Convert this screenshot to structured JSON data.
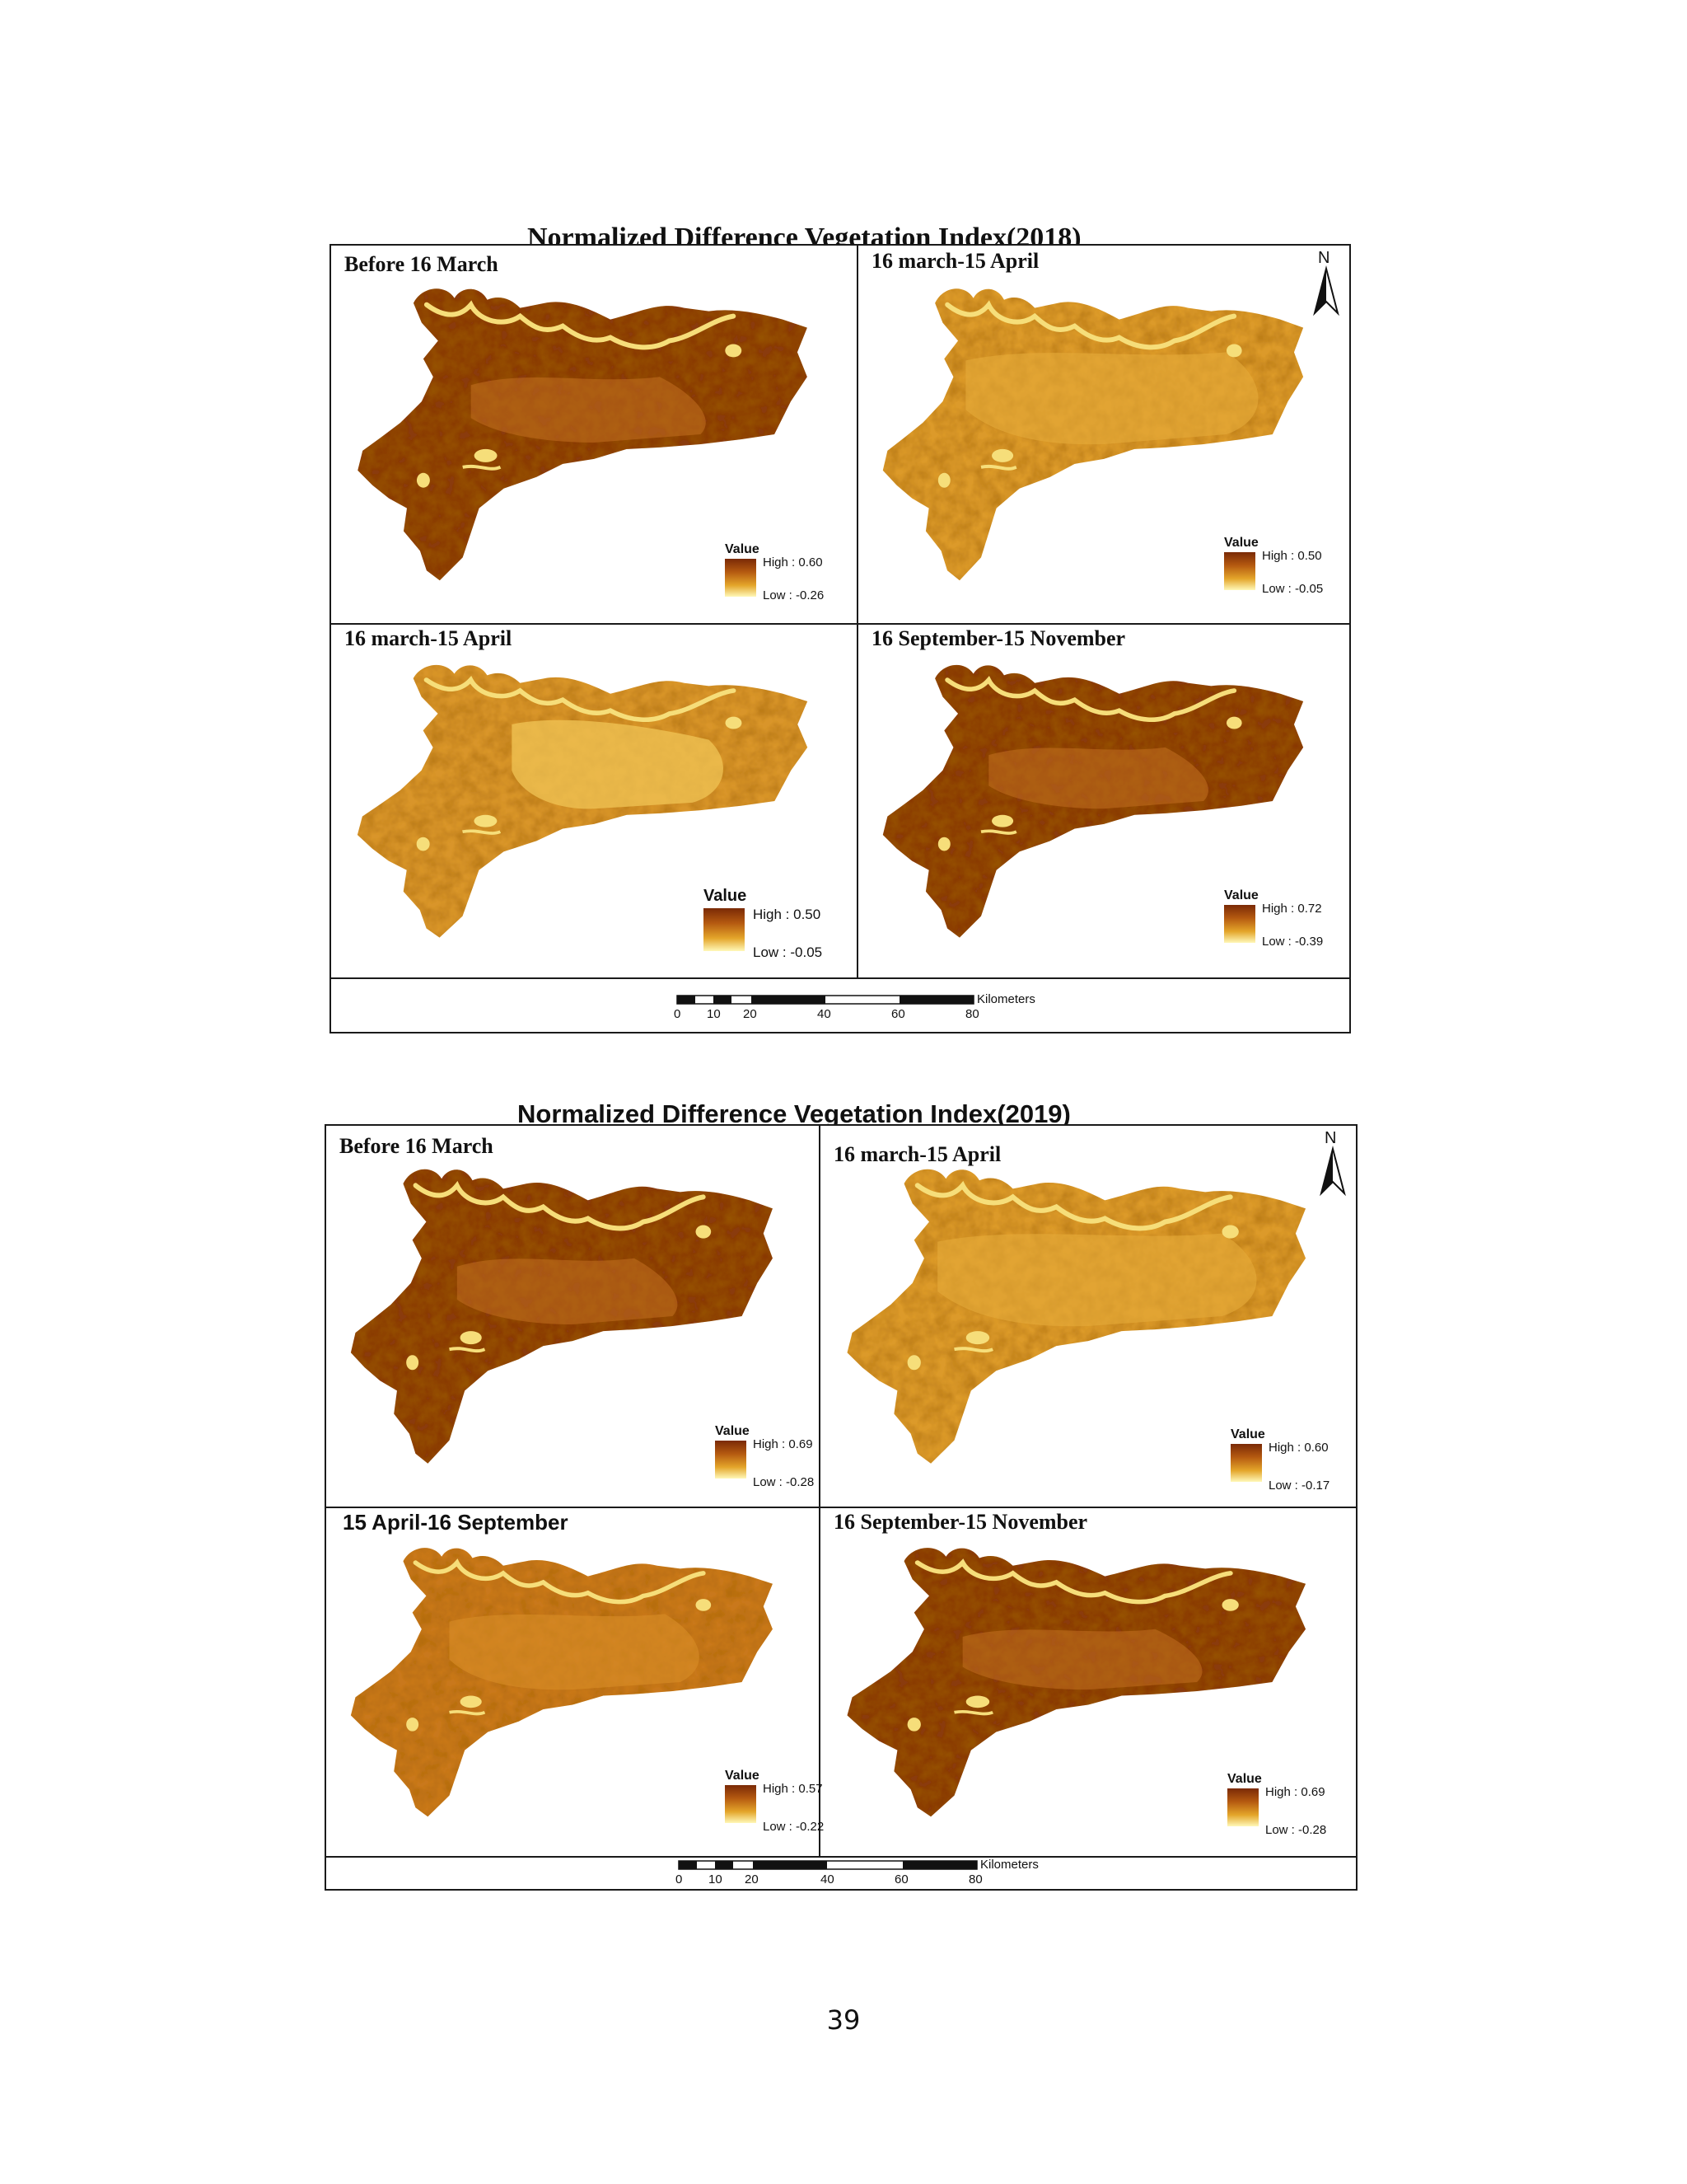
{
  "figures": [
    {
      "title": "Normalized Difference Vegetation Index(2018)",
      "panels": [
        {
          "title": "Before 16 March",
          "legend": {
            "title": "Value",
            "high": "High : 0.60",
            "low": "Low : -0.26"
          },
          "tone": "dark"
        },
        {
          "title": "16 march-15 April",
          "legend": {
            "title": "Value",
            "high": "High : 0.50",
            "low": "Low : -0.05"
          },
          "tone": "light"
        },
        {
          "title": "16 march-15 April",
          "legend": {
            "title": "Value",
            "high": "High : 0.50",
            "low": "Low : -0.05"
          },
          "tone": "lighter"
        },
        {
          "title": "16 September-15 November",
          "legend": {
            "title": "Value",
            "high": "High : 0.72",
            "low": "Low : -0.39"
          },
          "tone": "dark"
        }
      ],
      "north_label": "N",
      "scale": {
        "labels": [
          "0",
          "10",
          "20",
          "40",
          "60",
          "80"
        ],
        "units": "Kilometers"
      }
    },
    {
      "title": "Normalized Difference Vegetation Index(2019)",
      "panels": [
        {
          "title": "Before 16 March",
          "legend": {
            "title": "Value",
            "high": "High : 0.69",
            "low": "Low : -0.28"
          },
          "tone": "dark"
        },
        {
          "title": "16 march-15 April",
          "legend": {
            "title": "Value",
            "high": "High : 0.60",
            "low": "Low : -0.17"
          },
          "tone": "light"
        },
        {
          "title": "15 April-16 September",
          "legend": {
            "title": "Value",
            "high": "High : 0.57",
            "low": "Low : -0.22"
          },
          "tone": "medium"
        },
        {
          "title": "16 September-15 November",
          "legend": {
            "title": "Value",
            "high": "High : 0.69",
            "low": "Low : -0.28"
          },
          "tone": "dark"
        }
      ],
      "north_label": "N",
      "scale": {
        "labels": [
          "0",
          "10",
          "20",
          "40",
          "60",
          "80"
        ],
        "units": "Kilometers"
      }
    }
  ],
  "page_number": "39",
  "colors": {
    "dark": "#8a3a0a",
    "medium": "#c9781a",
    "light": "#dc9a2c",
    "lighter": "#e6ad3c",
    "water": "#f6de7a"
  }
}
